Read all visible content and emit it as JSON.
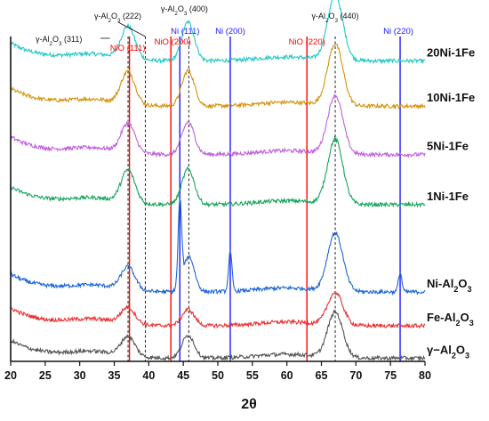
{
  "chart_data": {
    "type": "line",
    "xlabel": "2θ",
    "xlim": [
      20,
      80
    ],
    "x_ticks": [
      20,
      25,
      30,
      35,
      40,
      45,
      50,
      55,
      60,
      65,
      70,
      75,
      80
    ],
    "y_axis": "stacked XRD intensity (arbitrary units, no ticks)",
    "series": [
      {
        "name": "20Ni-1Fe",
        "color": "#1fc8c8",
        "label_parts": [
          [
            "20Ni-1Fe",
            false
          ]
        ],
        "offset": 0.93,
        "peaks": [
          [
            37.0,
            0.1,
            1.0
          ],
          [
            45.7,
            0.12,
            0.9
          ],
          [
            67.0,
            0.2,
            1.1
          ]
        ]
      },
      {
        "name": "10Ni-1Fe",
        "color": "#d4920a",
        "label_parts": [
          [
            "10Ni-1Fe",
            false
          ]
        ],
        "offset": 0.79,
        "peaks": [
          [
            37.0,
            0.1,
            1.0
          ],
          [
            45.7,
            0.11,
            0.9
          ],
          [
            67.0,
            0.19,
            1.1
          ]
        ]
      },
      {
        "name": "5Ni-1Fe",
        "color": "#c060dd",
        "label_parts": [
          [
            "5Ni-1Fe",
            false
          ]
        ],
        "offset": 0.64,
        "peaks": [
          [
            37.0,
            0.09,
            1.0
          ],
          [
            45.7,
            0.1,
            0.9
          ],
          [
            67.0,
            0.18,
            1.1
          ]
        ]
      },
      {
        "name": "1Ni-1Fe",
        "color": "#16a55c",
        "label_parts": [
          [
            "1Ni-1Fe",
            false
          ]
        ],
        "offset": 0.485,
        "peaks": [
          [
            37.0,
            0.1,
            1.0
          ],
          [
            45.7,
            0.11,
            0.9
          ],
          [
            67.0,
            0.2,
            1.1
          ]
        ]
      },
      {
        "name": "Ni-Al2O3",
        "color": "#1e66d6",
        "label_parts": [
          [
            "Ni-Al",
            false
          ],
          [
            "2",
            true
          ],
          [
            "O",
            false
          ],
          [
            "3",
            true
          ]
        ],
        "offset": 0.215,
        "peaks": [
          [
            37.0,
            0.07,
            1.0
          ],
          [
            44.5,
            0.26,
            0.25
          ],
          [
            45.8,
            0.11,
            0.8
          ],
          [
            51.8,
            0.12,
            0.25
          ],
          [
            67.0,
            0.18,
            1.1
          ],
          [
            76.4,
            0.06,
            0.25
          ]
        ]
      },
      {
        "name": "Fe-Al2O3",
        "color": "#e83030",
        "label_parts": [
          [
            "Fe-Al",
            false
          ],
          [
            "2",
            true
          ],
          [
            "O",
            false
          ],
          [
            "3",
            true
          ]
        ],
        "offset": 0.11,
        "peaks": [
          [
            37.0,
            0.05,
            1.0
          ],
          [
            45.7,
            0.05,
            0.9
          ],
          [
            67.0,
            0.1,
            1.1
          ]
        ]
      },
      {
        "name": "γ-Al2O3",
        "color": "#555555",
        "label_parts": [
          [
            "γ−Al",
            false
          ],
          [
            "2",
            true
          ],
          [
            "O",
            false
          ],
          [
            "3",
            true
          ]
        ],
        "offset": 0.01,
        "peaks": [
          [
            37.0,
            0.06,
            1.0
          ],
          [
            45.7,
            0.07,
            0.9
          ],
          [
            67.0,
            0.14,
            1.1
          ]
        ]
      }
    ],
    "reference_lines": [
      {
        "label": "NiO (111)",
        "x": 37.2,
        "color": "#ff0000",
        "style": "solid"
      },
      {
        "label": "NiO (200)",
        "x": 43.2,
        "color": "#ff0000",
        "style": "solid"
      },
      {
        "label": "NiO (220)",
        "x": 62.9,
        "color": "#ff0000",
        "style": "solid"
      },
      {
        "label": "Ni (111)",
        "x": 44.5,
        "color": "#1a1aff",
        "style": "solid"
      },
      {
        "label": "Ni (200)",
        "x": 51.8,
        "color": "#1a1aff",
        "style": "solid"
      },
      {
        "label": "Ni (220)",
        "x": 76.4,
        "color": "#1a1aff",
        "style": "solid"
      },
      {
        "label": "γ-Al2O3 (311)",
        "x": 37.0,
        "color": "#222222",
        "style": "dashed"
      },
      {
        "label": "γ-Al2O3 (222)",
        "x": 39.5,
        "color": "#222222",
        "style": "dashed"
      },
      {
        "label": "γ-Al2O3 (400)",
        "x": 45.8,
        "color": "#222222",
        "style": "dashed"
      },
      {
        "label": "γ-Al2O3 (440)",
        "x": 67.0,
        "color": "#222222",
        "style": "dashed"
      }
    ],
    "annotations": {
      "nio_111": [
        [
          "NiO (111)",
          false
        ]
      ],
      "nio_200": [
        [
          "NiO (200)",
          false
        ]
      ],
      "nio_220": [
        [
          "NiO (220)",
          false
        ]
      ],
      "ni_111": [
        [
          "Ni (111)",
          false
        ]
      ],
      "ni_200": [
        [
          "Ni (200)",
          false
        ]
      ],
      "ni_220": [
        [
          "Ni (220)",
          false
        ]
      ],
      "al_311": [
        [
          "γ-Al",
          false
        ],
        [
          "2",
          true
        ],
        [
          "O",
          false
        ],
        [
          "3",
          true
        ],
        [
          " (311)",
          false
        ]
      ],
      "al_222": [
        [
          "γ-Al",
          false
        ],
        [
          "2",
          true
        ],
        [
          "O",
          false
        ],
        [
          "3",
          true
        ],
        [
          " (222)",
          false
        ]
      ],
      "al_400": [
        [
          "γ-Al",
          false
        ],
        [
          "2",
          true
        ],
        [
          "O",
          false
        ],
        [
          "3",
          true
        ],
        [
          " (400)",
          false
        ]
      ],
      "al_440": [
        [
          "γ-Al",
          false
        ],
        [
          "2",
          true
        ],
        [
          "O",
          false
        ],
        [
          "3",
          true
        ],
        [
          " (440)",
          false
        ]
      ]
    },
    "grid": false,
    "legend": "labels placed at right end of each trace"
  }
}
